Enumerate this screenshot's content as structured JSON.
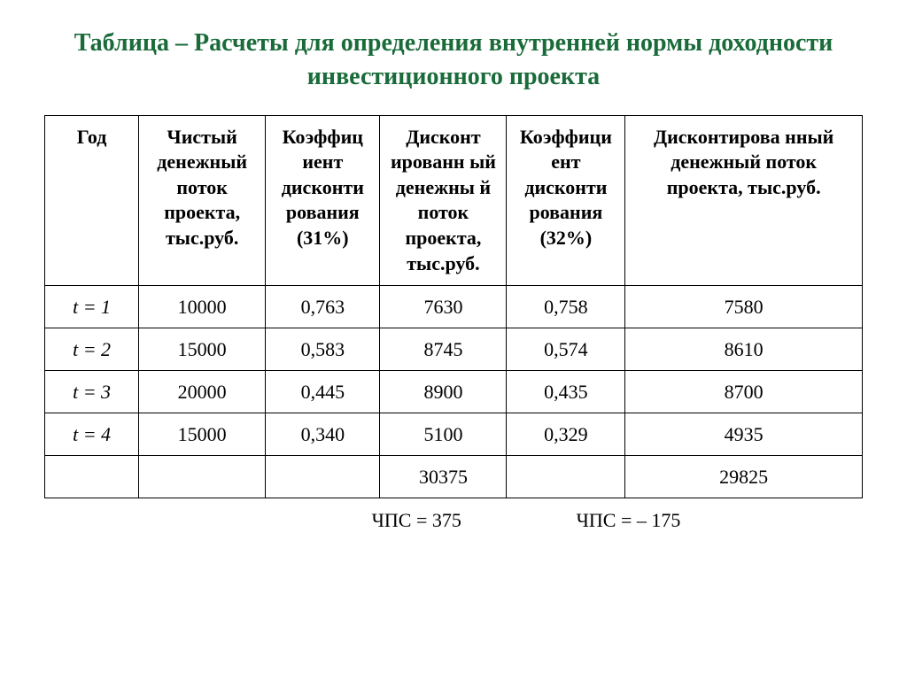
{
  "title": "Таблица – Расчеты для определения внутренней нормы доходности инвестиционного проекта",
  "title_color": "#1a6b3a",
  "columns": [
    "Год",
    "Чистый денежный поток проекта, тыс.руб.",
    "Коэффиц иент дисконти рования (31%)",
    "Дисконт ированн ый денежны й поток проекта, тыс.руб.",
    "Коэффици ент дисконти рования (32%)",
    "Дисконтирова нный денежный поток проекта, тыс.руб."
  ],
  "rows": [
    {
      "year": "t = 1",
      "cf": "10000",
      "k31": "0,763",
      "dcf31": "7630",
      "k32": "0,758",
      "dcf32": "7580"
    },
    {
      "year": "t = 2",
      "cf": "15000",
      "k31": "0,583",
      "dcf31": "8745",
      "k32": "0,574",
      "dcf32": "8610"
    },
    {
      "year": "t = 3",
      "cf": "20000",
      "k31": "0,445",
      "dcf31": "8900",
      "k32": "0,435",
      "dcf32": "8700"
    },
    {
      "year": "t = 4",
      "cf": "15000",
      "k31": "0,340",
      "dcf31": "5100",
      "k32": "0,329",
      "dcf32": "4935"
    }
  ],
  "totals": {
    "dcf31": "30375",
    "dcf32": "29825"
  },
  "footer": {
    "left": "ЧПС = 375",
    "right": "ЧПС =  – 175"
  }
}
